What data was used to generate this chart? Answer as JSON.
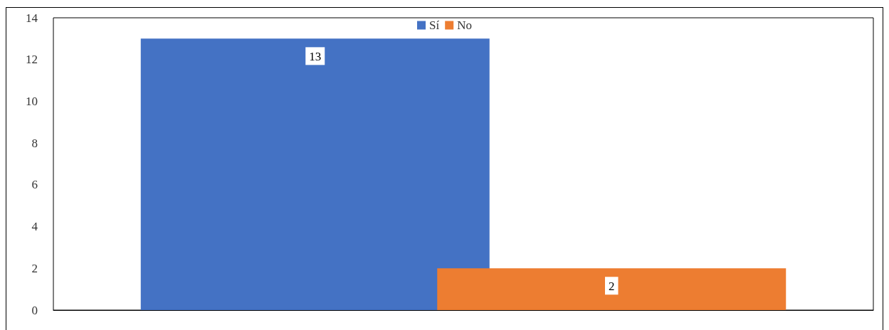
{
  "chart_data": {
    "type": "bar",
    "categories": [
      null
    ],
    "series": [
      {
        "name": "Sí",
        "color": "#4472c4",
        "values": [
          13
        ]
      },
      {
        "name": "No",
        "color": "#ed7d31",
        "values": [
          2
        ]
      }
    ],
    "ylim": [
      0,
      14
    ],
    "yticks": [
      0,
      2,
      4,
      6,
      8,
      10,
      12,
      14
    ],
    "grid": false,
    "legend": "top",
    "data_labels": true
  }
}
